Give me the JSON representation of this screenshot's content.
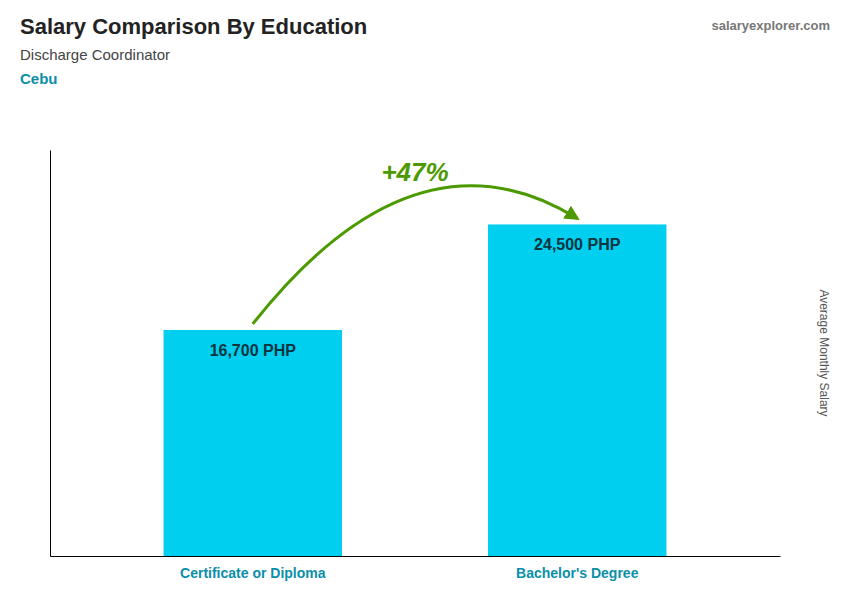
{
  "chart_data": {
    "type": "bar",
    "title": "Salary Comparison By Education",
    "subtitle": "Discharge Coordinator",
    "annotations": [
      "Cebu",
      "salaryexplorer.com",
      "+47%"
    ],
    "y_label": "Average Monthly Salary",
    "categories": [
      "Certificate or Diploma",
      "Bachelor's Degree"
    ],
    "values": [
      16700,
      24500
    ],
    "value_labels": [
      "16,700 PHP",
      "24,500 PHP"
    ],
    "data_labels": true,
    "color": "#00CFEF",
    "ylim": [
      0,
      30000
    ],
    "tick_labels": "x",
    "grid": false
  }
}
